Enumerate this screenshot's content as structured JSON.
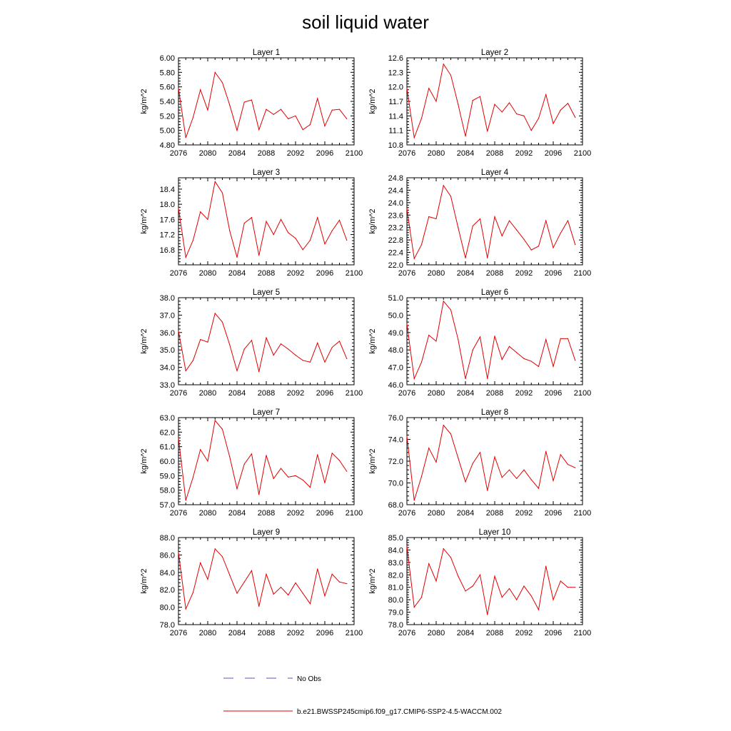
{
  "figure_title": "soil liquid water",
  "legend": [
    {
      "label": "No Obs",
      "color": "#5555cc",
      "dash": true
    },
    {
      "label": "b.e21.BWSSP245cmip6.f09_g17.CMIP6-SSP2-4.5-WACCM.002",
      "color": "#e00000",
      "dash": false
    }
  ],
  "chart_data": [
    {
      "type": "line",
      "title": "Layer 1",
      "ylabel": "kg/m^2",
      "xlim": [
        2076,
        2100
      ],
      "ylim": [
        4.8,
        6.0
      ],
      "xticks": [
        "2076",
        "2080",
        "2084",
        "2088",
        "2092",
        "2096",
        "2100"
      ],
      "yticks": [
        "4.80",
        "5.00",
        "5.20",
        "5.40",
        "5.60",
        "5.80",
        "6.00"
      ],
      "x": [
        2076,
        2077,
        2078,
        2079,
        2080,
        2081,
        2082,
        2083,
        2084,
        2085,
        2086,
        2087,
        2088,
        2089,
        2090,
        2091,
        2092,
        2093,
        2094,
        2095,
        2096,
        2097,
        2098,
        2099
      ],
      "values": [
        5.58,
        4.9,
        5.18,
        5.56,
        5.28,
        5.8,
        5.66,
        5.35,
        5.0,
        5.39,
        5.42,
        5.01,
        5.29,
        5.22,
        5.29,
        5.16,
        5.2,
        5.01,
        5.08,
        5.44,
        5.06,
        5.28,
        5.29,
        5.16
      ]
    },
    {
      "type": "line",
      "title": "Layer 2",
      "ylabel": "kg/m^2",
      "xlim": [
        2076,
        2100
      ],
      "ylim": [
        10.8,
        12.6
      ],
      "xticks": [
        "2076",
        "2080",
        "2084",
        "2088",
        "2092",
        "2096",
        "2100"
      ],
      "yticks": [
        "10.8",
        "11.1",
        "11.4",
        "11.7",
        "12.0",
        "12.3",
        "12.6"
      ],
      "x": [
        2076,
        2077,
        2078,
        2079,
        2080,
        2081,
        2082,
        2083,
        2084,
        2085,
        2086,
        2087,
        2088,
        2089,
        2090,
        2091,
        2092,
        2093,
        2094,
        2095,
        2096,
        2097,
        2098,
        2099
      ],
      "values": [
        11.97,
        10.95,
        11.35,
        11.97,
        11.7,
        12.47,
        12.24,
        11.64,
        10.98,
        11.72,
        11.8,
        11.08,
        11.64,
        11.48,
        11.67,
        11.44,
        11.4,
        11.1,
        11.35,
        11.84,
        11.24,
        11.52,
        11.66,
        11.37
      ]
    },
    {
      "type": "line",
      "title": "Layer 3",
      "ylabel": "kg/m^2",
      "xlim": [
        2076,
        2100
      ],
      "ylim": [
        16.4,
        18.7
      ],
      "xticks": [
        "2076",
        "2080",
        "2084",
        "2088",
        "2092",
        "2096",
        "2100"
      ],
      "yticks": [
        "16.8",
        "17.2",
        "17.6",
        "18.0",
        "18.4"
      ],
      "x": [
        2076,
        2077,
        2078,
        2079,
        2080,
        2081,
        2082,
        2083,
        2084,
        2085,
        2086,
        2087,
        2088,
        2089,
        2090,
        2091,
        2092,
        2093,
        2094,
        2095,
        2096,
        2097,
        2098,
        2099
      ],
      "values": [
        17.9,
        16.6,
        17.05,
        17.8,
        17.6,
        18.6,
        18.3,
        17.3,
        16.6,
        17.5,
        17.65,
        16.65,
        17.55,
        17.2,
        17.6,
        17.25,
        17.1,
        16.8,
        17.05,
        17.65,
        16.95,
        17.3,
        17.58,
        17.05
      ]
    },
    {
      "type": "line",
      "title": "Layer 4",
      "ylabel": "kg/m^2",
      "xlim": [
        2076,
        2100
      ],
      "ylim": [
        22.0,
        24.8
      ],
      "xticks": [
        "2076",
        "2080",
        "2084",
        "2088",
        "2092",
        "2096",
        "2100"
      ],
      "yticks": [
        "22.0",
        "22.4",
        "22.8",
        "23.2",
        "23.6",
        "24.0",
        "24.4",
        "24.8"
      ],
      "x": [
        2076,
        2077,
        2078,
        2079,
        2080,
        2081,
        2082,
        2083,
        2084,
        2085,
        2086,
        2087,
        2088,
        2089,
        2090,
        2091,
        2092,
        2093,
        2094,
        2095,
        2096,
        2097,
        2098,
        2099
      ],
      "values": [
        23.8,
        22.2,
        22.65,
        23.55,
        23.48,
        24.55,
        24.2,
        23.2,
        22.22,
        23.25,
        23.48,
        22.22,
        23.55,
        22.93,
        23.42,
        23.12,
        22.82,
        22.48,
        22.6,
        23.42,
        22.55,
        23.02,
        23.42,
        22.65
      ]
    },
    {
      "type": "line",
      "title": "Layer 5",
      "ylabel": "kg/m^2",
      "xlim": [
        2076,
        2100
      ],
      "ylim": [
        33.0,
        38.0
      ],
      "xticks": [
        "2076",
        "2080",
        "2084",
        "2088",
        "2092",
        "2096",
        "2100"
      ],
      "yticks": [
        "33.0",
        "34.0",
        "35.0",
        "36.0",
        "37.0",
        "38.0"
      ],
      "x": [
        2076,
        2077,
        2078,
        2079,
        2080,
        2081,
        2082,
        2083,
        2084,
        2085,
        2086,
        2087,
        2088,
        2089,
        2090,
        2091,
        2092,
        2093,
        2094,
        2095,
        2096,
        2097,
        2098,
        2099
      ],
      "values": [
        36.1,
        33.8,
        34.4,
        35.6,
        35.45,
        37.1,
        36.6,
        35.3,
        33.8,
        35.05,
        35.55,
        33.75,
        35.7,
        34.7,
        35.35,
        35.05,
        34.7,
        34.4,
        34.3,
        35.4,
        34.3,
        35.15,
        35.5,
        34.5
      ]
    },
    {
      "type": "line",
      "title": "Layer 6",
      "ylabel": "kg/m^2",
      "xlim": [
        2076,
        2100
      ],
      "ylim": [
        46.0,
        51.0
      ],
      "xticks": [
        "2076",
        "2080",
        "2084",
        "2088",
        "2092",
        "2096",
        "2100"
      ],
      "yticks": [
        "46.0",
        "47.0",
        "48.0",
        "49.0",
        "50.0",
        "51.0"
      ],
      "x": [
        2076,
        2077,
        2078,
        2079,
        2080,
        2081,
        2082,
        2083,
        2084,
        2085,
        2086,
        2087,
        2088,
        2089,
        2090,
        2091,
        2092,
        2093,
        2094,
        2095,
        2096,
        2097,
        2098,
        2099
      ],
      "values": [
        49.5,
        46.35,
        47.3,
        48.85,
        48.5,
        50.8,
        50.3,
        48.6,
        46.35,
        48.0,
        48.75,
        46.35,
        48.8,
        47.45,
        48.2,
        47.85,
        47.5,
        47.35,
        47.05,
        48.6,
        47.05,
        48.65,
        48.65,
        47.4
      ]
    },
    {
      "type": "line",
      "title": "Layer 7",
      "ylabel": "kg/m^2",
      "xlim": [
        2076,
        2100
      ],
      "ylim": [
        57.0,
        63.0
      ],
      "xticks": [
        "2076",
        "2080",
        "2084",
        "2088",
        "2092",
        "2096",
        "2100"
      ],
      "yticks": [
        "57.0",
        "58.0",
        "59.0",
        "60.0",
        "61.0",
        "62.0",
        "63.0"
      ],
      "x": [
        2076,
        2077,
        2078,
        2079,
        2080,
        2081,
        2082,
        2083,
        2084,
        2085,
        2086,
        2087,
        2088,
        2089,
        2090,
        2091,
        2092,
        2093,
        2094,
        2095,
        2096,
        2097,
        2098,
        2099
      ],
      "values": [
        61.6,
        57.3,
        58.9,
        60.8,
        60.0,
        62.8,
        62.2,
        60.3,
        58.1,
        59.8,
        60.5,
        57.7,
        60.4,
        58.8,
        59.5,
        58.9,
        59.0,
        58.7,
        58.2,
        60.45,
        58.5,
        60.55,
        60.05,
        59.3
      ]
    },
    {
      "type": "line",
      "title": "Layer 8",
      "ylabel": "kg/m^2",
      "xlim": [
        2076,
        2100
      ],
      "ylim": [
        68.0,
        76.0
      ],
      "xticks": [
        "2076",
        "2080",
        "2084",
        "2088",
        "2092",
        "2096",
        "2100"
      ],
      "yticks": [
        "68.0",
        "70.0",
        "72.0",
        "74.0",
        "76.0"
      ],
      "x": [
        2076,
        2077,
        2078,
        2079,
        2080,
        2081,
        2082,
        2083,
        2084,
        2085,
        2086,
        2087,
        2088,
        2089,
        2090,
        2091,
        2092,
        2093,
        2094,
        2095,
        2096,
        2097,
        2098,
        2099
      ],
      "values": [
        74.3,
        68.4,
        70.6,
        73.2,
        71.9,
        75.3,
        74.5,
        72.3,
        70.1,
        71.8,
        72.8,
        69.3,
        72.4,
        70.5,
        71.2,
        70.4,
        71.2,
        70.3,
        69.5,
        72.9,
        70.2,
        72.6,
        71.7,
        71.4
      ]
    },
    {
      "type": "line",
      "title": "Layer 9",
      "ylabel": "kg/m^2",
      "xlim": [
        2076,
        2100
      ],
      "ylim": [
        78.0,
        88.0
      ],
      "xticks": [
        "2076",
        "2080",
        "2084",
        "2088",
        "2092",
        "2096",
        "2100"
      ],
      "yticks": [
        "78.0",
        "80.0",
        "82.0",
        "84.0",
        "86.0",
        "88.0"
      ],
      "x": [
        2076,
        2077,
        2078,
        2079,
        2080,
        2081,
        2082,
        2083,
        2084,
        2085,
        2086,
        2087,
        2088,
        2089,
        2090,
        2091,
        2092,
        2093,
        2094,
        2095,
        2096,
        2097,
        2098,
        2099
      ],
      "values": [
        86.3,
        79.8,
        81.7,
        85.1,
        83.2,
        86.7,
        85.8,
        83.7,
        81.6,
        82.9,
        84.2,
        80.1,
        83.8,
        81.5,
        82.3,
        81.4,
        82.8,
        81.6,
        80.4,
        84.4,
        81.3,
        83.8,
        82.9,
        82.7
      ]
    },
    {
      "type": "line",
      "title": "Layer 10",
      "ylabel": "kg/m^2",
      "xlim": [
        2076,
        2100
      ],
      "ylim": [
        78.0,
        85.0
      ],
      "xticks": [
        "2076",
        "2080",
        "2084",
        "2088",
        "2092",
        "2096",
        "2100"
      ],
      "yticks": [
        "78.0",
        "79.0",
        "80.0",
        "81.0",
        "82.0",
        "83.0",
        "84.0",
        "85.0"
      ],
      "x": [
        2076,
        2077,
        2078,
        2079,
        2080,
        2081,
        2082,
        2083,
        2084,
        2085,
        2086,
        2087,
        2088,
        2089,
        2090,
        2091,
        2092,
        2093,
        2094,
        2095,
        2096,
        2097,
        2098,
        2099
      ],
      "values": [
        84.3,
        79.4,
        80.2,
        82.9,
        81.5,
        84.1,
        83.4,
        81.9,
        80.7,
        81.1,
        82.0,
        78.8,
        81.9,
        80.2,
        80.9,
        80.0,
        81.1,
        80.3,
        79.2,
        82.7,
        80.0,
        81.5,
        81.0,
        81.0
      ]
    }
  ]
}
